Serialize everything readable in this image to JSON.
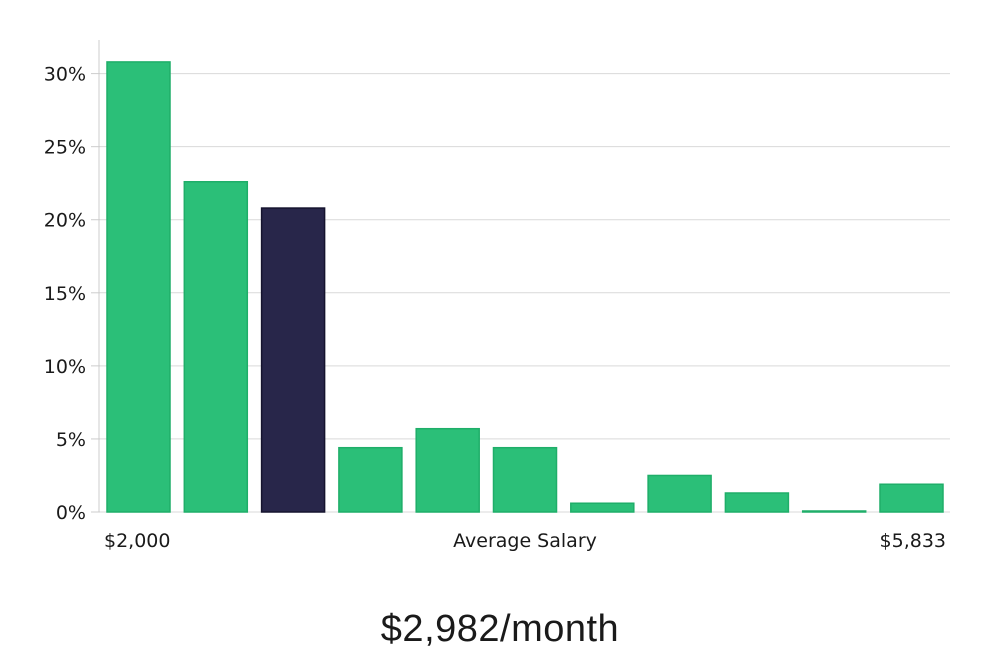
{
  "chart_data": {
    "type": "bar",
    "x_start_label": "$2,000",
    "x_end_label": "$5,833",
    "xlabel": "Average Salary",
    "values": [
      30.8,
      22.6,
      20.8,
      4.4,
      5.7,
      4.4,
      0.6,
      2.5,
      1.3,
      0.05,
      1.9
    ],
    "highlight_index": 2,
    "ylim": [
      0,
      32.3
    ],
    "yticks": [
      0,
      5,
      10,
      15,
      20,
      25,
      30
    ],
    "ytick_labels": [
      "0%",
      "5%",
      "10%",
      "15%",
      "20%",
      "25%",
      "30%"
    ],
    "grid": true,
    "colors": {
      "bar": "#2bbf78",
      "bar_stroke": "#1fae69",
      "highlight": "#28264a",
      "highlight_stroke": "#15132e",
      "grid": "#d9d9d9",
      "axis": "#cccccc"
    }
  },
  "summary": "$2,982/month"
}
